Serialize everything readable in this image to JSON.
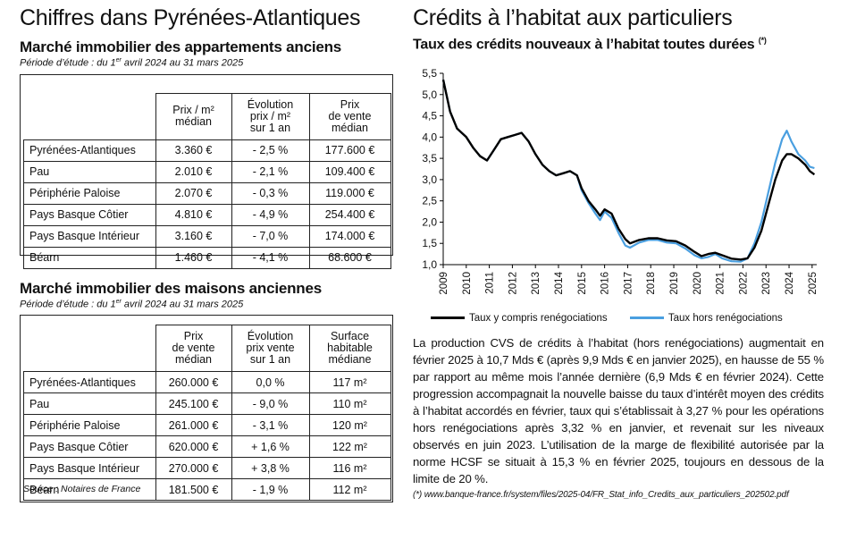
{
  "left": {
    "title": "Chiffres dans Pyrénées-Atlantiques",
    "apartments": {
      "heading": "Marché immobilier des appartements anciens",
      "period_prefix": "Période d’étude : du 1",
      "period_sup": "er",
      "period_suffix": " avril 2024 au 31 mars 2025",
      "columns": [
        "Prix / m²\nmédian",
        "Évolution\nprix / m²\nsur 1 an",
        "Prix\nde vente\nmédian"
      ],
      "rows": [
        {
          "name": "Pyrénées-Atlantiques",
          "c1": "3.360 €",
          "c2": "- 2,5 %",
          "c3": "177.600 €"
        },
        {
          "name": "Pau",
          "c1": "2.010 €",
          "c2": "- 2,1 %",
          "c3": "109.400 €"
        },
        {
          "name": "Périphérie Paloise",
          "c1": "2.070 €",
          "c2": "- 0,3 %",
          "c3": "119.000 €"
        },
        {
          "name": "Pays Basque Côtier",
          "c1": "4.810 €",
          "c2": "- 4,9 %",
          "c3": "254.400 €"
        },
        {
          "name": "Pays Basque Intérieur",
          "c1": "3.160 €",
          "c2": "- 7,0 %",
          "c3": "174.000 €"
        },
        {
          "name": "Béarn",
          "c1": "1.460 €",
          "c2": "- 4,1 %",
          "c3": "68.600 €"
        }
      ]
    },
    "houses": {
      "heading": "Marché immobilier des maisons anciennes",
      "period_prefix": "Période d’étude : du 1",
      "period_sup": "er",
      "period_suffix": " avril 2024 au 31 mars 2025",
      "columns": [
        "Prix\nde vente\nmédian",
        "Évolution\nprix vente\nsur 1 an",
        "Surface\nhabitable\nmédiane"
      ],
      "rows": [
        {
          "name": "Pyrénées-Atlantiques",
          "c1": "260.000 €",
          "c2": "0,0 %",
          "c3": "117 m²"
        },
        {
          "name": "Pau",
          "c1": "245.100 €",
          "c2": "- 9,0 %",
          "c3": "110 m²"
        },
        {
          "name": "Périphérie Paloise",
          "c1": "261.000 €",
          "c2": "- 3,1 %",
          "c3": "120 m²"
        },
        {
          "name": "Pays Basque Côtier",
          "c1": "620.000 €",
          "c2": "+ 1,6 %",
          "c3": "122 m²"
        },
        {
          "name": "Pays Basque Intérieur",
          "c1": "270.000 €",
          "c2": "+ 3,8 %",
          "c3": "116 m²"
        },
        {
          "name": "Béarn",
          "c1": "181.500 €",
          "c2": "- 1,9 %",
          "c3": "112 m²"
        }
      ]
    },
    "source": "Source : Notaires de France"
  },
  "right": {
    "title": "Crédits à l’habitat aux particuliers",
    "chart_title": "Taux des crédits nouveaux à l’habitat toutes durées",
    "chart_title_sup": "(*)",
    "paragraph": "La production CVS de crédits à l’habitat (hors renégociations) augmentait en février 2025 à 10,7 Mds € (après 9,9 Mds € en janvier 2025), en hausse de 55 % par rapport au même mois l’année dernière (6,9 Mds € en février 2024). Cette progression accompagnait la nouvelle baisse du taux d’intérêt moyen des crédits à l’habitat accordés en février, taux qui s’établissait à 3,27 % pour les opérations hors renégociations après 3,32 % en janvier, et revenait sur les niveaux observés en juin 2023. L’utilisation de la marge de flexibilité autorisée par la norme HCSF se situait à 15,3 % en février 2025, toujours en dessous de la limite de 20 %.",
    "note": "(*)  www.banque-france.fr/system/files/2025-04/FR_Stat_info_Credits_aux_particuliers_202502.pdf"
  },
  "chart_data": {
    "type": "line",
    "title": "Taux des crédits nouveaux à l’habitat toutes durées (*)",
    "xlabel": "",
    "ylabel": "",
    "xlim": [
      2009,
      2025.2
    ],
    "ylim": [
      1.0,
      5.5
    ],
    "yticks": [
      "5,5",
      "5,0",
      "4,5",
      "4,0",
      "3,5",
      "3,0",
      "2,5",
      "2,0",
      "1,5",
      "1,0"
    ],
    "ytick_values": [
      5.5,
      5.0,
      4.5,
      4.0,
      3.5,
      3.0,
      2.5,
      2.0,
      1.5,
      1.0
    ],
    "xticks": [
      "2009",
      "2010",
      "2011",
      "2012",
      "2013",
      "2014",
      "2015",
      "2016",
      "2017",
      "2018",
      "2019",
      "2020",
      "2021",
      "2022",
      "2023",
      "2024",
      "2025"
    ],
    "grid": false,
    "legend_position": "bottom",
    "series": [
      {
        "name": "Taux y compris renégociations",
        "color": "#000000",
        "points": [
          [
            2009.0,
            5.35
          ],
          [
            2009.3,
            4.6
          ],
          [
            2009.6,
            4.2
          ],
          [
            2010.0,
            4.0
          ],
          [
            2010.3,
            3.75
          ],
          [
            2010.6,
            3.55
          ],
          [
            2010.9,
            3.45
          ],
          [
            2011.2,
            3.7
          ],
          [
            2011.5,
            3.95
          ],
          [
            2011.8,
            4.0
          ],
          [
            2012.1,
            4.05
          ],
          [
            2012.4,
            4.1
          ],
          [
            2012.7,
            3.9
          ],
          [
            2013.0,
            3.6
          ],
          [
            2013.3,
            3.35
          ],
          [
            2013.6,
            3.2
          ],
          [
            2013.9,
            3.1
          ],
          [
            2014.2,
            3.15
          ],
          [
            2014.5,
            3.2
          ],
          [
            2014.8,
            3.1
          ],
          [
            2015.0,
            2.8
          ],
          [
            2015.3,
            2.5
          ],
          [
            2015.6,
            2.3
          ],
          [
            2015.8,
            2.15
          ],
          [
            2016.0,
            2.3
          ],
          [
            2016.3,
            2.2
          ],
          [
            2016.6,
            1.85
          ],
          [
            2016.9,
            1.6
          ],
          [
            2017.1,
            1.5
          ],
          [
            2017.5,
            1.58
          ],
          [
            2017.9,
            1.62
          ],
          [
            2018.3,
            1.62
          ],
          [
            2018.7,
            1.57
          ],
          [
            2019.1,
            1.55
          ],
          [
            2019.5,
            1.45
          ],
          [
            2019.9,
            1.3
          ],
          [
            2020.2,
            1.2
          ],
          [
            2020.5,
            1.25
          ],
          [
            2020.8,
            1.28
          ],
          [
            2021.1,
            1.22
          ],
          [
            2021.5,
            1.14
          ],
          [
            2021.9,
            1.12
          ],
          [
            2022.2,
            1.15
          ],
          [
            2022.5,
            1.4
          ],
          [
            2022.8,
            1.8
          ],
          [
            2023.1,
            2.4
          ],
          [
            2023.4,
            3.0
          ],
          [
            2023.7,
            3.45
          ],
          [
            2023.9,
            3.6
          ],
          [
            2024.1,
            3.6
          ],
          [
            2024.4,
            3.5
          ],
          [
            2024.7,
            3.35
          ],
          [
            2024.9,
            3.2
          ],
          [
            2025.1,
            3.12
          ]
        ]
      },
      {
        "name": "Taux hors renégociations",
        "color": "#4a9fe0",
        "points": [
          [
            2009.0,
            5.35
          ],
          [
            2009.3,
            4.6
          ],
          [
            2009.6,
            4.2
          ],
          [
            2010.0,
            4.0
          ],
          [
            2010.3,
            3.75
          ],
          [
            2010.6,
            3.55
          ],
          [
            2010.9,
            3.45
          ],
          [
            2011.2,
            3.7
          ],
          [
            2011.5,
            3.95
          ],
          [
            2011.8,
            4.0
          ],
          [
            2012.1,
            4.05
          ],
          [
            2012.4,
            4.1
          ],
          [
            2012.7,
            3.9
          ],
          [
            2013.0,
            3.6
          ],
          [
            2013.3,
            3.35
          ],
          [
            2013.6,
            3.2
          ],
          [
            2013.9,
            3.1
          ],
          [
            2014.2,
            3.15
          ],
          [
            2014.5,
            3.2
          ],
          [
            2014.8,
            3.1
          ],
          [
            2015.0,
            2.75
          ],
          [
            2015.3,
            2.45
          ],
          [
            2015.6,
            2.2
          ],
          [
            2015.8,
            2.05
          ],
          [
            2016.0,
            2.25
          ],
          [
            2016.3,
            2.1
          ],
          [
            2016.6,
            1.75
          ],
          [
            2016.9,
            1.45
          ],
          [
            2017.1,
            1.4
          ],
          [
            2017.5,
            1.52
          ],
          [
            2017.9,
            1.58
          ],
          [
            2018.3,
            1.58
          ],
          [
            2018.7,
            1.52
          ],
          [
            2019.1,
            1.5
          ],
          [
            2019.5,
            1.38
          ],
          [
            2019.9,
            1.22
          ],
          [
            2020.2,
            1.15
          ],
          [
            2020.5,
            1.18
          ],
          [
            2020.8,
            1.25
          ],
          [
            2021.1,
            1.15
          ],
          [
            2021.5,
            1.08
          ],
          [
            2021.9,
            1.07
          ],
          [
            2022.2,
            1.15
          ],
          [
            2022.5,
            1.5
          ],
          [
            2022.8,
            2.0
          ],
          [
            2023.1,
            2.7
          ],
          [
            2023.4,
            3.4
          ],
          [
            2023.7,
            3.95
          ],
          [
            2023.9,
            4.15
          ],
          [
            2024.1,
            3.9
          ],
          [
            2024.4,
            3.6
          ],
          [
            2024.7,
            3.45
          ],
          [
            2024.9,
            3.3
          ],
          [
            2025.1,
            3.27
          ]
        ]
      }
    ]
  }
}
